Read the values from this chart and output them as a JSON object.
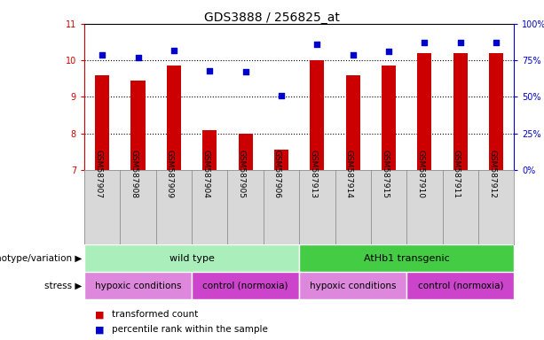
{
  "title": "GDS3888 / 256825_at",
  "samples": [
    "GSM587907",
    "GSM587908",
    "GSM587909",
    "GSM587904",
    "GSM587905",
    "GSM587906",
    "GSM587913",
    "GSM587914",
    "GSM587915",
    "GSM587910",
    "GSM587911",
    "GSM587912"
  ],
  "bar_values": [
    9.6,
    9.45,
    9.85,
    8.1,
    8.0,
    7.55,
    10.0,
    9.6,
    9.85,
    10.2,
    10.2,
    10.2
  ],
  "dot_values": [
    79,
    77,
    82,
    68,
    67,
    51,
    86,
    79,
    81,
    87,
    87,
    87
  ],
  "ylim_left": [
    7,
    11
  ],
  "ylim_right": [
    0,
    100
  ],
  "yticks_left": [
    7,
    8,
    9,
    10,
    11
  ],
  "yticks_right": [
    0,
    25,
    50,
    75,
    100
  ],
  "ytick_labels_right": [
    "0%",
    "25%",
    "50%",
    "75%",
    "100%"
  ],
  "bar_color": "#cc0000",
  "dot_color": "#0000cc",
  "bar_bottom": 7,
  "groups": [
    {
      "label": "wild type",
      "start": 0,
      "end": 6,
      "color": "#aaeebb"
    },
    {
      "label": "AtHb1 transgenic",
      "start": 6,
      "end": 12,
      "color": "#44cc44"
    }
  ],
  "stress_groups": [
    {
      "label": "hypoxic conditions",
      "start": 0,
      "end": 3,
      "color": "#dd88dd"
    },
    {
      "label": "control (normoxia)",
      "start": 3,
      "end": 6,
      "color": "#cc44cc"
    },
    {
      "label": "hypoxic conditions",
      "start": 6,
      "end": 9,
      "color": "#dd88dd"
    },
    {
      "label": "control (normoxia)",
      "start": 9,
      "end": 12,
      "color": "#cc44cc"
    }
  ],
  "legend_items": [
    {
      "label": "transformed count",
      "color": "#cc0000"
    },
    {
      "label": "percentile rank within the sample",
      "color": "#0000cc"
    }
  ],
  "grid_color": "black",
  "left_axis_color": "#cc0000",
  "right_axis_color": "#0000cc",
  "sample_bg_color": "#d8d8d8",
  "title_fontsize": 10,
  "tick_fontsize": 7,
  "label_fontsize": 8,
  "sample_fontsize": 6.5,
  "annotation_fontsize": 7.5
}
